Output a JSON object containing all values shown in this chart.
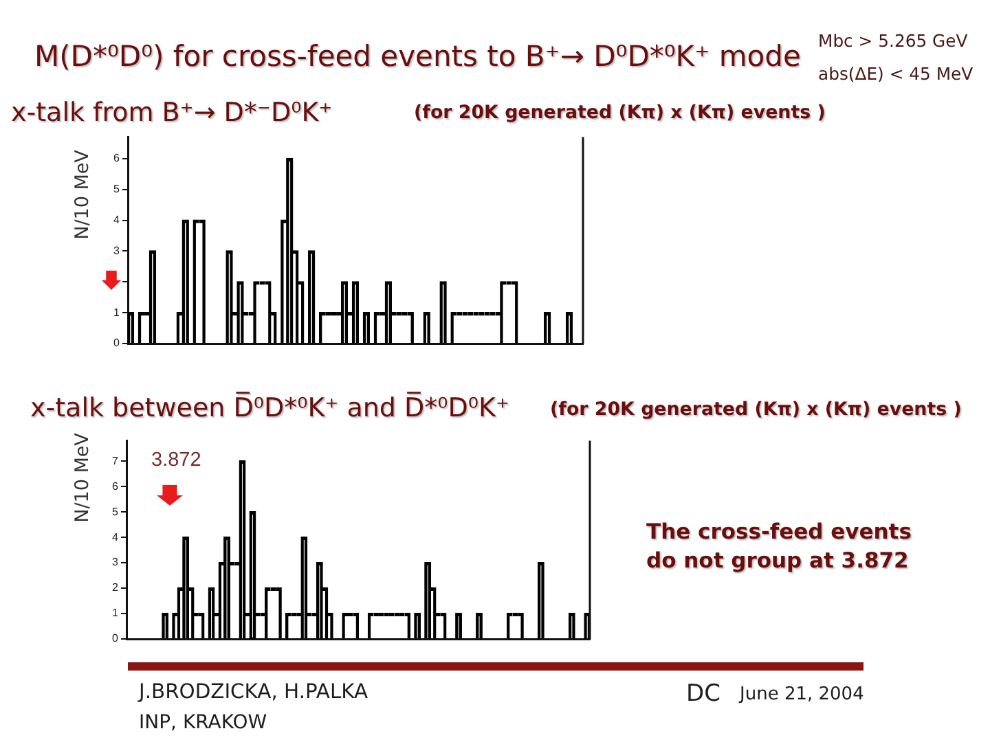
{
  "chart_data": [
    {
      "type": "bar",
      "title": "x-talk from B⁺→ D*⁻D⁰K⁺",
      "subtitle": "(for 20K generated (Kπ) x (Kπ) events )",
      "ylabel": "N/10 MeV",
      "annotations": [
        "M(D*⁰D⁰) for cross-feed events to B⁺→ D⁰D*⁰K⁺ mode",
        "Mbc > 5.265 GeV",
        "abs(ΔE) < 45 MeV"
      ],
      "categories": [
        null,
        null,
        null,
        null,
        null,
        null,
        null,
        null,
        null,
        null,
        null,
        null,
        null,
        null,
        null,
        null,
        null,
        null,
        null,
        null,
        null,
        null,
        null,
        null,
        null,
        null,
        null,
        null,
        null,
        null,
        null,
        null,
        null,
        null,
        null,
        null,
        null,
        null,
        null,
        null,
        null,
        null,
        null,
        null,
        null,
        null,
        null,
        null,
        null,
        null,
        null,
        null,
        null,
        null,
        null,
        null,
        null,
        null,
        null,
        null,
        null,
        null,
        null,
        null,
        null,
        null,
        null,
        null,
        null,
        null,
        null,
        null,
        null,
        null,
        null,
        null,
        null,
        null,
        null,
        null,
        null,
        null,
        null
      ],
      "values": [
        1,
        0,
        1,
        1,
        3,
        0,
        0,
        0,
        0,
        1,
        4,
        0,
        4,
        4,
        0,
        0,
        0,
        0,
        3,
        1,
        2,
        1,
        1,
        2,
        2,
        2,
        1,
        0,
        4,
        6,
        3,
        2,
        0,
        3,
        0,
        1,
        1,
        1,
        1,
        2,
        1,
        2,
        0,
        1,
        0,
        1,
        1,
        2,
        1,
        1,
        1,
        1,
        0,
        0,
        1,
        0,
        0,
        2,
        0,
        1,
        1,
        1,
        1,
        1,
        1,
        1,
        1,
        1,
        2,
        2,
        2,
        0,
        0,
        0,
        0,
        0,
        1,
        0,
        0,
        0,
        1,
        0,
        0
      ],
      "color": "#000000",
      "ylim": [
        0,
        6.7
      ],
      "yticks": [
        0,
        1,
        {
          "value": 2,
          "label": null
        },
        3,
        4,
        5,
        6
      ]
    },
    {
      "type": "bar",
      "title": "x-talk between D̅⁰D*⁰K⁺ and D̅*⁰D⁰K⁺",
      "subtitle": "(for 20K generated (Kπ) x (Kπ) events )",
      "ylabel": "N/10 MeV",
      "annotations": [
        "3.872",
        "The cross-feed events do not group at 3.872",
        "J.BRODZICKA, H.PALKA",
        "INP, KRAKOW",
        "DC",
        "June 21, 2004"
      ],
      "categories": [
        null,
        null,
        null,
        null,
        null,
        null,
        null,
        null,
        null,
        null,
        null,
        null,
        null,
        null,
        null,
        null,
        null,
        null,
        null,
        null,
        null,
        null,
        null,
        null,
        null,
        null,
        null,
        null,
        null,
        null,
        null,
        null,
        null,
        null,
        null,
        null,
        null,
        null,
        null,
        null,
        null,
        null,
        null,
        null,
        null,
        null,
        null,
        null,
        null,
        null,
        null,
        null,
        null,
        null,
        null,
        null,
        null,
        null,
        null,
        null,
        null,
        null,
        null,
        null,
        null,
        null,
        null,
        null,
        null,
        null,
        null,
        null,
        null,
        null,
        null,
        null,
        null,
        null,
        null,
        null,
        null,
        null,
        null,
        null,
        null,
        null,
        null,
        null,
        null,
        null
      ],
      "values": [
        0,
        0,
        0,
        0,
        0,
        0,
        0,
        1,
        0,
        1,
        2,
        4,
        2,
        1,
        1,
        0,
        2,
        1,
        3,
        4,
        3,
        3,
        7,
        1,
        5,
        1,
        1,
        2,
        2,
        2,
        0,
        1,
        1,
        1,
        4,
        1,
        1,
        3,
        2,
        1,
        0,
        0,
        1,
        1,
        1,
        0,
        0,
        1,
        1,
        1,
        1,
        1,
        1,
        1,
        1,
        0,
        1,
        0,
        3,
        2,
        1,
        1,
        0,
        0,
        1,
        0,
        0,
        0,
        1,
        0,
        0,
        0,
        0,
        0,
        1,
        1,
        1,
        0,
        0,
        0,
        3,
        0,
        0,
        0,
        0,
        0,
        1,
        0,
        0,
        1
      ],
      "color": "#000000",
      "ylim": [
        0,
        7.8
      ],
      "yticks": [
        0,
        1,
        2,
        3,
        4,
        5,
        6,
        7
      ]
    }
  ]
}
